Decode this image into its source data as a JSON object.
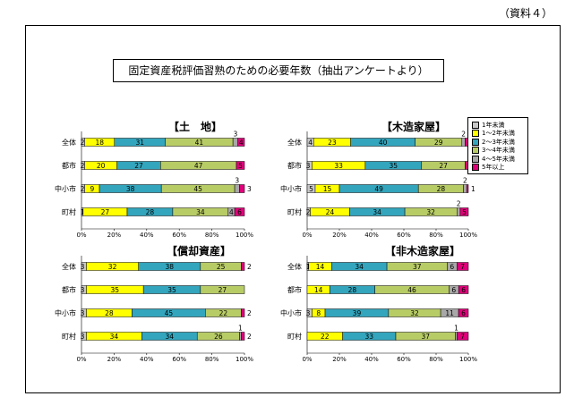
{
  "doc_label": "（資料４）",
  "title": "固定資産税評価習熟のための必要年数（抽出アンケートより）",
  "colors": {
    "1年未満": "#c8c8c8",
    "1～2年未満": "#ffff00",
    "2～3年未満": "#33a5bd",
    "3～4年未満": "#b8cc66",
    "4～5年未満": "#a8a8a8",
    "5年以上": "#e0007a"
  },
  "legend": [
    "1年未満",
    "1～2年未満",
    "2～3年未満",
    "3～4年未満",
    "4～5年未満",
    "5年以上"
  ],
  "chart_data": [
    {
      "type": "bar",
      "stacked": true,
      "orientation": "horizontal",
      "title": "【土　地】",
      "categories": [
        "全体",
        "都市",
        "中小市",
        "町村"
      ],
      "xticks": [
        "0%",
        "20%",
        "40%",
        "60%",
        "80%",
        "100%"
      ],
      "xlim": [
        0,
        100
      ],
      "series": [
        {
          "name": "1年未満",
          "values": [
            2,
            2,
            2,
            1
          ]
        },
        {
          "name": "1～2年未満",
          "values": [
            18,
            20,
            9,
            27
          ]
        },
        {
          "name": "2～3年未満",
          "values": [
            31,
            27,
            38,
            28
          ]
        },
        {
          "name": "3～4年未満",
          "values": [
            41,
            47,
            45,
            34
          ]
        },
        {
          "name": "4～5年未満",
          "values": [
            3,
            0,
            3,
            4
          ]
        },
        {
          "name": "5年以上",
          "values": [
            4,
            5,
            3,
            6
          ]
        }
      ]
    },
    {
      "type": "bar",
      "stacked": true,
      "orientation": "horizontal",
      "title": "【木造家屋】",
      "categories": [
        "全体",
        "都市",
        "中小市",
        "町村"
      ],
      "xticks": [
        "0%",
        "20%",
        "40%",
        "60%",
        "80%",
        "100%"
      ],
      "xlim": [
        0,
        100
      ],
      "series": [
        {
          "name": "1年未満",
          "values": [
            4,
            3,
            5,
            2
          ]
        },
        {
          "name": "1～2年未満",
          "values": [
            23,
            33,
            15,
            24
          ]
        },
        {
          "name": "2～3年未満",
          "values": [
            40,
            35,
            49,
            34
          ]
        },
        {
          "name": "3～4年未満",
          "values": [
            29,
            27,
            28,
            32
          ]
        },
        {
          "name": "4～5年未満",
          "values": [
            2,
            0,
            2,
            2
          ]
        },
        {
          "name": "5年以上",
          "values": [
            2,
            2,
            1,
            5
          ]
        }
      ]
    },
    {
      "type": "bar",
      "stacked": true,
      "orientation": "horizontal",
      "title": "【償却資産】",
      "categories": [
        "全体",
        "都市",
        "中小市",
        "町村"
      ],
      "xticks": [
        "0%",
        "20%",
        "40%",
        "60%",
        "80%",
        "100%"
      ],
      "xlim": [
        0,
        100
      ],
      "series": [
        {
          "name": "1年未満",
          "values": [
            3,
            3,
            3,
            3
          ]
        },
        {
          "name": "1～2年未満",
          "values": [
            32,
            35,
            28,
            34
          ]
        },
        {
          "name": "2～3年未満",
          "values": [
            38,
            35,
            45,
            34
          ]
        },
        {
          "name": "3～4年未満",
          "values": [
            25,
            27,
            22,
            26
          ]
        },
        {
          "name": "4～5年未満",
          "values": [
            0,
            0,
            0,
            1
          ]
        },
        {
          "name": "5年以上",
          "values": [
            2,
            0,
            2,
            2
          ]
        }
      ]
    },
    {
      "type": "bar",
      "stacked": true,
      "orientation": "horizontal",
      "title": "【非木造家屋】",
      "categories": [
        "全体",
        "都市",
        "中小市",
        "町村"
      ],
      "xticks": [
        "0%",
        "20%",
        "40%",
        "60%",
        "80%",
        "100%"
      ],
      "xlim": [
        0,
        100
      ],
      "series": [
        {
          "name": "1年未満",
          "values": [
            1,
            0,
            3,
            0
          ]
        },
        {
          "name": "1～2年未満",
          "values": [
            14,
            14,
            8,
            22
          ]
        },
        {
          "name": "2～3年未満",
          "values": [
            34,
            28,
            39,
            33
          ]
        },
        {
          "name": "3～4年未満",
          "values": [
            37,
            46,
            32,
            37
          ]
        },
        {
          "name": "4～5年未満",
          "values": [
            6,
            6,
            11,
            1
          ]
        },
        {
          "name": "5年以上",
          "values": [
            7,
            6,
            6,
            7
          ]
        }
      ]
    }
  ]
}
